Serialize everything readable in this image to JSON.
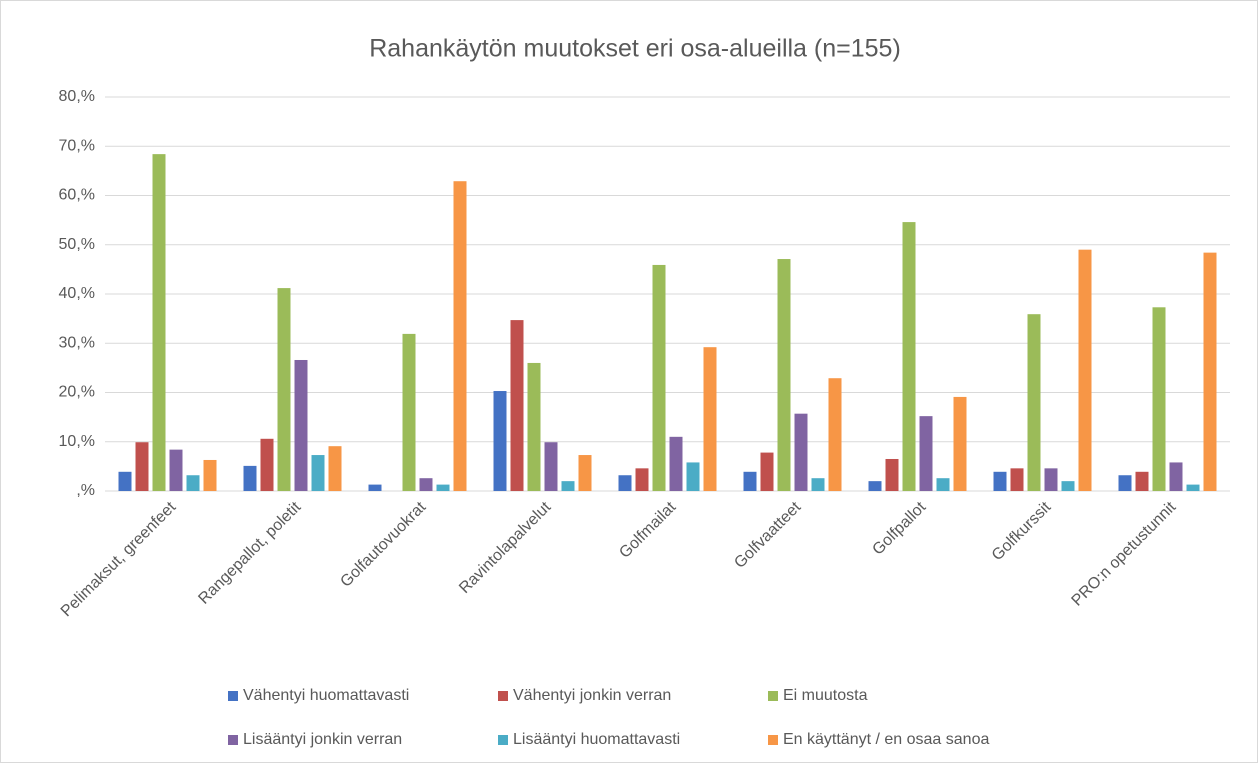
{
  "chart_data": {
    "type": "bar",
    "title": "Rahankäytön muutokset eri osa-alueilla (n=155)",
    "categories": [
      "Pelimaksut, greenfeet",
      "Rangepallot, poletit",
      "Golfautovuokrat",
      "Ravintolapalvelut",
      "Golfmailat",
      "Golfvaatteet",
      "Golfpallot",
      "Golfkurssit",
      "PRO:n opetustunnit"
    ],
    "series": [
      {
        "name": "Vähentyi huomattavasti",
        "color": "#4472c4",
        "values": [
          3.9,
          5.1,
          1.3,
          20.3,
          3.2,
          3.9,
          2.0,
          3.9,
          3.2
        ]
      },
      {
        "name": "Vähentyi jonkin verran",
        "color": "#c0504d",
        "values": [
          9.9,
          10.6,
          0,
          34.7,
          4.6,
          7.8,
          6.5,
          4.6,
          3.9
        ]
      },
      {
        "name": "Ei muutosta",
        "color": "#9bbb59",
        "values": [
          68.4,
          41.2,
          31.9,
          26.0,
          45.9,
          47.1,
          54.6,
          35.9,
          37.3
        ]
      },
      {
        "name": "Lisääntyi jonkin verran",
        "color": "#8064a2",
        "values": [
          8.4,
          26.6,
          2.6,
          9.9,
          11.0,
          15.7,
          15.2,
          4.6,
          5.8
        ]
      },
      {
        "name": "Lisääntyi huomattavasti",
        "color": "#4bacc6",
        "values": [
          3.2,
          7.3,
          1.3,
          2.0,
          5.8,
          2.6,
          2.6,
          2.0,
          1.3
        ]
      },
      {
        "name": "En käyttänyt / en osaa sanoa",
        "color": "#f79646",
        "values": [
          6.3,
          9.1,
          62.9,
          7.3,
          29.2,
          22.9,
          19.1,
          49.0,
          48.4
        ]
      }
    ],
    "ylim": [
      0,
      80
    ],
    "yticks": [
      {
        "value": 0,
        "label": ",%"
      },
      {
        "value": 10,
        "label": "10,%"
      },
      {
        "value": 20,
        "label": "20,%"
      },
      {
        "value": 30,
        "label": "30,%"
      },
      {
        "value": 40,
        "label": "40,%"
      },
      {
        "value": 50,
        "label": "50,%"
      },
      {
        "value": 60,
        "label": "60,%"
      },
      {
        "value": 70,
        "label": "70,%"
      },
      {
        "value": 80,
        "label": "80,%"
      }
    ],
    "grid": true,
    "legend": "bottom"
  }
}
